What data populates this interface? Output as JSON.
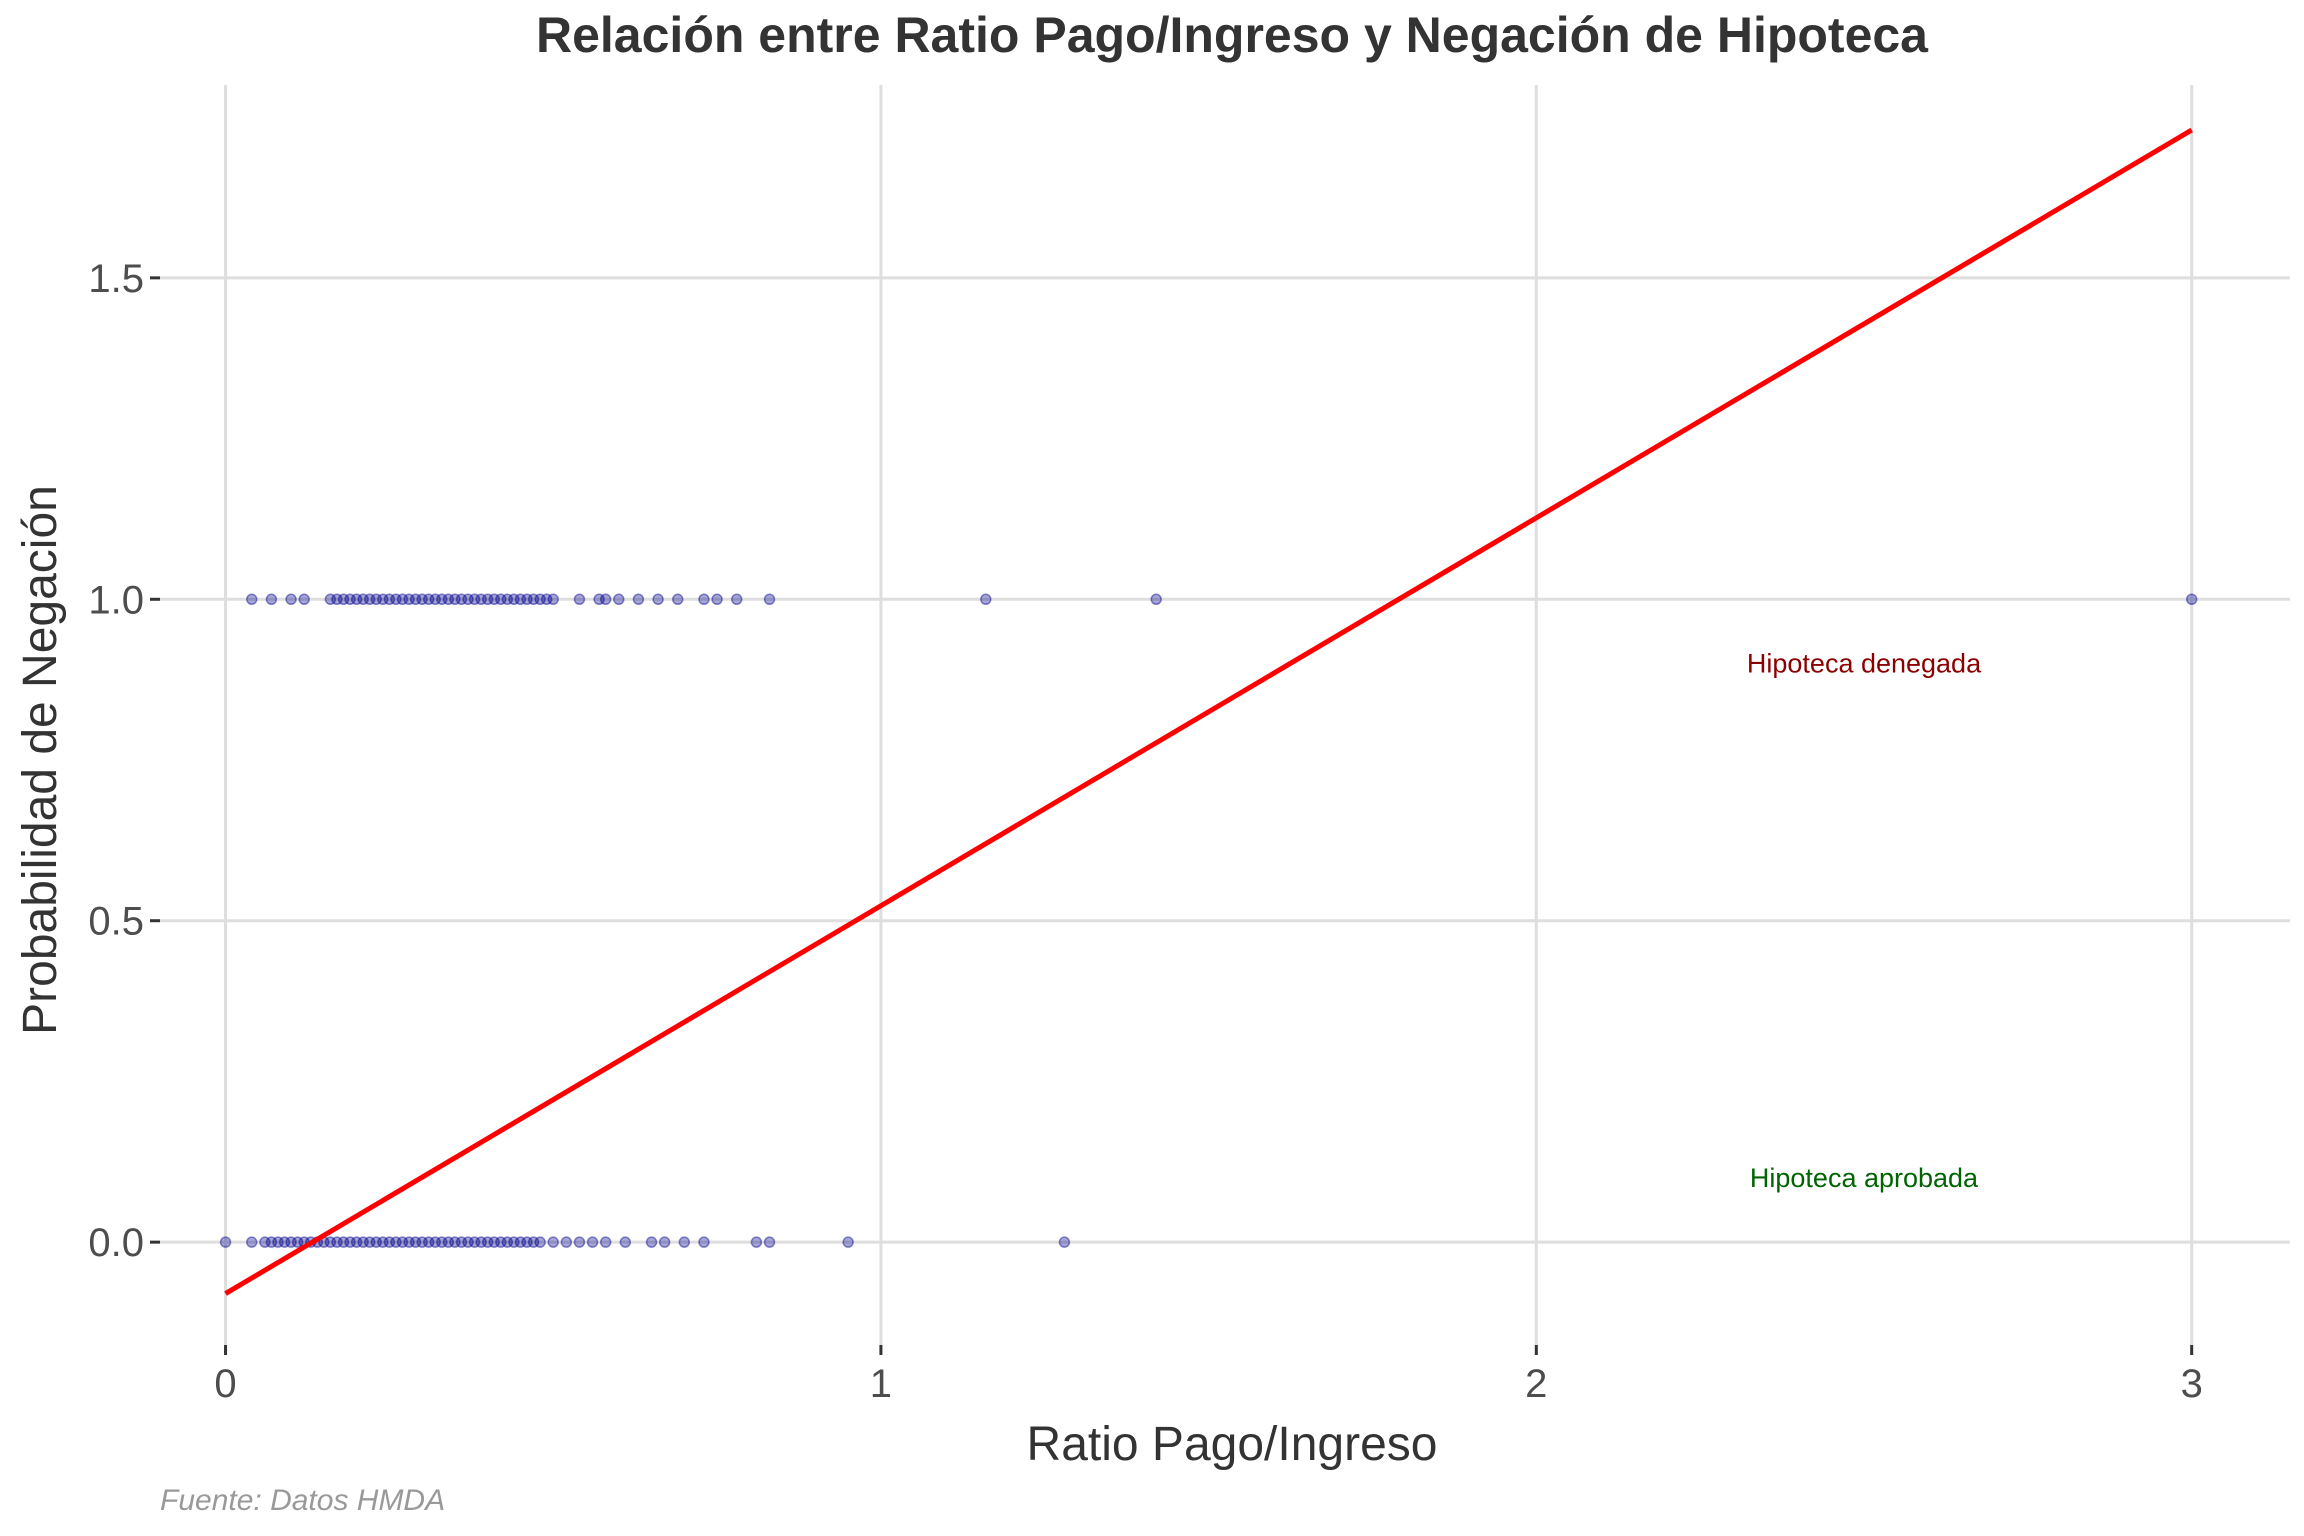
{
  "chart_data": {
    "type": "scatter",
    "title": "Relación entre Ratio Pago/Ingreso y Negación de Hipoteca",
    "xlabel": "Ratio Pago/Ingreso",
    "ylabel": "Probabilidad de Negación",
    "caption": "Fuente: Datos HMDA",
    "xlim": [
      -0.1,
      3.15
    ],
    "ylim": [
      -0.16,
      1.8
    ],
    "x_ticks": [
      0,
      1,
      2,
      3
    ],
    "x_tick_labels": [
      "0",
      "1",
      "2",
      "3"
    ],
    "y_ticks": [
      0.0,
      0.5,
      1.0,
      1.5
    ],
    "y_tick_labels": [
      "0.0",
      "0.5",
      "1.0",
      "1.5"
    ],
    "grid": true,
    "colors": {
      "points": "#00008b",
      "fit_line": "#ff0000",
      "denied": "#8b0000",
      "approved": "#006400",
      "grid": "#dedede"
    },
    "series": [
      {
        "values_y": 1,
        "x": [
          0.04,
          0.07,
          0.1,
          0.12,
          0.16,
          0.17,
          0.18,
          0.19,
          0.2,
          0.21,
          0.22,
          0.23,
          0.24,
          0.25,
          0.26,
          0.27,
          0.28,
          0.29,
          0.3,
          0.31,
          0.32,
          0.33,
          0.34,
          0.35,
          0.36,
          0.37,
          0.38,
          0.39,
          0.4,
          0.41,
          0.42,
          0.43,
          0.44,
          0.45,
          0.46,
          0.47,
          0.48,
          0.49,
          0.5,
          0.54,
          0.57,
          0.58,
          0.6,
          0.63,
          0.66,
          0.69,
          0.73,
          0.75,
          0.78,
          0.83,
          1.16,
          1.42,
          3.0
        ]
      },
      {
        "values_y": 0,
        "x": [
          0.0,
          0.04,
          0.06,
          0.07,
          0.08,
          0.09,
          0.1,
          0.11,
          0.12,
          0.13,
          0.14,
          0.15,
          0.16,
          0.17,
          0.18,
          0.19,
          0.2,
          0.21,
          0.22,
          0.23,
          0.24,
          0.25,
          0.26,
          0.27,
          0.28,
          0.29,
          0.3,
          0.31,
          0.32,
          0.33,
          0.34,
          0.35,
          0.36,
          0.37,
          0.38,
          0.39,
          0.4,
          0.41,
          0.42,
          0.43,
          0.44,
          0.45,
          0.46,
          0.47,
          0.48,
          0.5,
          0.52,
          0.54,
          0.56,
          0.58,
          0.61,
          0.65,
          0.67,
          0.7,
          0.73,
          0.81,
          0.83,
          0.95,
          1.28
        ]
      }
    ],
    "fit_line": {
      "x": [
        0.0,
        3.0
      ],
      "y": [
        -0.08,
        1.73
      ]
    },
    "annotations": [
      {
        "text": "Hipoteca denegada",
        "x": 2.5,
        "y": 0.9,
        "color": "#8b0000"
      },
      {
        "text": "Hipoteca aprobada",
        "x": 2.5,
        "y": 0.1,
        "color": "#006400"
      }
    ]
  }
}
